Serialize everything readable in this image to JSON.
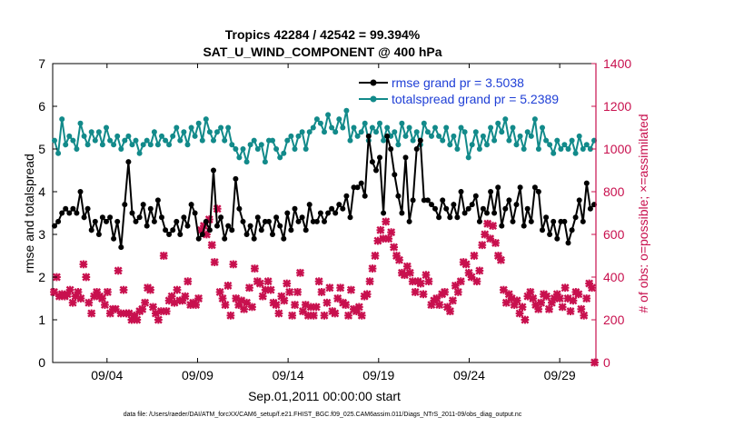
{
  "chart_data": {
    "type": "line",
    "title": "Tropics 42284 / 42542 = 99.394%",
    "subtitle": "SAT_U_WIND_COMPONENT @ 400 hPa",
    "xlabel": "Sep.01,2011 00:00:00 start",
    "ylabel": "rmse and totalspread",
    "ylabel_right": "# of obs: o=possible; ×=assimilated",
    "footnote": "data file: /Users/raeder/DAI/ATM_forcXX/CAM6_setup/f.e21.FHIST_BGC.f09_025.CAM6assim.011/Diags_NTrS_2011-09/obs_diag_output.nc",
    "x_unit": "days since 2011-09-01 00:00",
    "x_range": [
      1,
      31
    ],
    "x_ticks": [
      {
        "x": 4,
        "label": "09/04"
      },
      {
        "x": 9,
        "label": "09/09"
      },
      {
        "x": 14,
        "label": "09/14"
      },
      {
        "x": 19,
        "label": "09/19"
      },
      {
        "x": 24,
        "label": "09/24"
      },
      {
        "x": 29,
        "label": "09/29"
      }
    ],
    "ylim": [
      0,
      7
    ],
    "y_ticks": [
      "0",
      "1",
      "2",
      "3",
      "4",
      "5",
      "6",
      "7"
    ],
    "ylim_right": [
      0,
      1400
    ],
    "y_ticks_right": [
      "0",
      "200",
      "400",
      "600",
      "800",
      "1000",
      "1200",
      "1400"
    ],
    "grid": false,
    "legend_placement": "top-right",
    "colors": {
      "rmse": "#000000",
      "totalspread": "#128a8a",
      "obs": "#c8104e",
      "legend_text": "#1f3fd6"
    },
    "series": [
      {
        "name": "rmse grand pr = 3.5038",
        "axis": "left",
        "marker": "circle",
        "values": [
          3.2,
          3.3,
          3.5,
          3.6,
          3.5,
          3.6,
          3.5,
          4.0,
          3.4,
          3.6,
          3.1,
          3.3,
          3.0,
          3.4,
          3.3,
          3.4,
          2.9,
          3.3,
          2.7,
          3.7,
          4.7,
          3.5,
          3.3,
          3.4,
          3.7,
          3.2,
          3.6,
          3.3,
          3.8,
          3.4,
          3.1,
          3.0,
          3.1,
          3.3,
          3.0,
          3.4,
          3.2,
          3.7,
          3.5,
          2.9,
          3.0,
          3.3,
          3.1,
          4.5,
          3.2,
          3.4,
          2.9,
          3.2,
          3.1,
          4.3,
          3.6,
          3.3,
          3.0,
          3.2,
          2.9,
          3.4,
          3.1,
          3.3,
          3.3,
          3.0,
          3.4,
          3.2,
          2.9,
          3.5,
          3.1,
          3.6,
          3.3,
          3.4,
          3.1,
          3.7,
          3.3,
          3.3,
          3.5,
          3.3,
          3.5,
          3.6,
          3.5,
          3.7,
          3.6,
          3.9,
          3.4,
          4.1,
          4.1,
          4.2,
          3.9,
          5.3,
          4.7,
          4.5,
          4.8,
          3.5,
          5.3,
          5.0,
          4.4,
          3.9,
          3.5,
          4.8,
          3.3,
          3.8,
          5.0,
          5.2,
          3.8,
          3.8,
          3.7,
          3.6,
          3.4,
          3.8,
          3.6,
          3.4,
          3.7,
          3.4,
          4.0,
          3.5,
          3.6,
          3.7,
          3.9,
          3.3,
          3.6,
          3.5,
          4.0,
          3.5,
          4.1,
          3.2,
          3.6,
          3.8,
          3.3,
          3.7,
          4.1,
          3.2,
          3.6,
          3.3,
          4.1,
          4.0,
          3.1,
          3.4,
          3.0,
          3.3,
          2.9,
          3.3,
          3.3,
          2.8,
          3.1,
          3.4,
          3.8,
          3.3,
          4.2,
          3.6,
          3.7
        ]
      },
      {
        "name": "totalspread grand pr = 5.2389",
        "axis": "left",
        "marker": "circle",
        "values": [
          5.2,
          4.9,
          5.7,
          5.1,
          5.3,
          5.2,
          5.0,
          5.6,
          5.3,
          5.1,
          5.4,
          5.2,
          5.4,
          5.1,
          5.5,
          5.2,
          5.1,
          5.3,
          5.0,
          5.2,
          5.3,
          5.1,
          5.2,
          4.9,
          5.1,
          5.2,
          5.1,
          5.4,
          5.1,
          5.3,
          5.2,
          5.1,
          5.3,
          5.5,
          5.2,
          5.4,
          5.1,
          5.5,
          5.3,
          5.6,
          5.2,
          5.7,
          5.4,
          5.2,
          5.4,
          5.5,
          5.2,
          5.5,
          5.1,
          5.0,
          4.8,
          5.0,
          4.7,
          5.1,
          5.2,
          5.0,
          5.1,
          4.7,
          5.2,
          5.2,
          5.0,
          4.8,
          4.9,
          5.2,
          5.3,
          5.0,
          5.3,
          5.4,
          5.0,
          5.4,
          5.5,
          5.7,
          5.6,
          5.4,
          5.8,
          5.5,
          5.4,
          5.7,
          5.5,
          5.9,
          5.2,
          5.5,
          5.3,
          5.4,
          5.6,
          5.2,
          5.5,
          5.4,
          5.6,
          5.2,
          5.5,
          5.3,
          5.4,
          5.1,
          5.6,
          5.3,
          5.5,
          5.2,
          5.4,
          5.1,
          5.6,
          5.4,
          5.3,
          5.5,
          5.3,
          5.2,
          5.5,
          5.1,
          5.3,
          5.0,
          5.5,
          5.4,
          4.8,
          5.1,
          5.4,
          5.0,
          5.3,
          5.1,
          5.5,
          5.2,
          5.6,
          5.4,
          5.7,
          5.2,
          5.5,
          5.1,
          5.3,
          5.0,
          5.4,
          5.3,
          5.7,
          5.0,
          5.5,
          5.2,
          5.1,
          4.9,
          5.2,
          5.0,
          5.1,
          5.0,
          5.2,
          4.9,
          5.3,
          5.0,
          5.1,
          5.0,
          5.2
        ]
      },
      {
        "name": "assimilated",
        "axis": "right",
        "marker": "cross",
        "values": [
          330,
          400,
          310,
          320,
          310,
          320,
          340,
          280,
          310,
          330,
          300,
          460,
          400,
          280,
          230,
          310,
          330,
          310,
          300,
          270,
          330,
          230,
          250,
          250,
          430,
          230,
          340,
          230,
          230,
          200,
          220,
          200,
          240,
          250,
          280,
          350,
          340,
          260,
          230,
          200,
          240,
          500,
          240,
          290,
          310,
          280,
          340,
          290,
          290,
          310,
          380,
          270,
          280,
          270,
          300,
          620,
          640,
          600,
          670,
          550,
          470,
          720,
          330,
          300,
          270,
          360,
          220,
          460,
          300,
          270,
          290,
          250,
          280,
          350,
          260,
          440,
          380,
          370,
          310,
          340,
          380,
          340,
          280,
          270,
          230,
          310,
          290,
          370,
          330,
          220,
          270,
          330,
          420,
          240,
          270,
          220,
          260,
          220,
          260,
          380,
          330,
          220,
          280,
          350,
          240,
          230,
          300,
          350,
          280,
          270,
          220,
          340,
          250,
          240,
          260,
          220,
          310,
          320,
          380,
          440,
          500,
          570,
          620,
          580,
          660,
          580,
          610,
          540,
          500,
          480,
          420,
          410,
          450,
          420,
          380,
          330,
          380,
          370,
          320,
          410,
          380,
          270,
          290,
          300,
          270,
          320,
          330,
          260,
          240,
          290,
          360,
          330,
          380,
          470,
          460,
          420,
          400,
          500,
          380,
          430,
          550,
          600,
          650,
          580,
          640,
          560,
          500,
          480,
          340,
          280,
          320,
          300,
          270,
          290,
          230,
          260,
          200,
          310,
          330,
          300,
          270,
          250,
          280,
          320,
          310,
          250,
          280,
          300,
          320,
          300,
          260,
          350,
          300,
          240,
          290,
          330,
          320,
          250,
          220,
          300,
          370,
          350,
          0
        ]
      }
    ]
  }
}
